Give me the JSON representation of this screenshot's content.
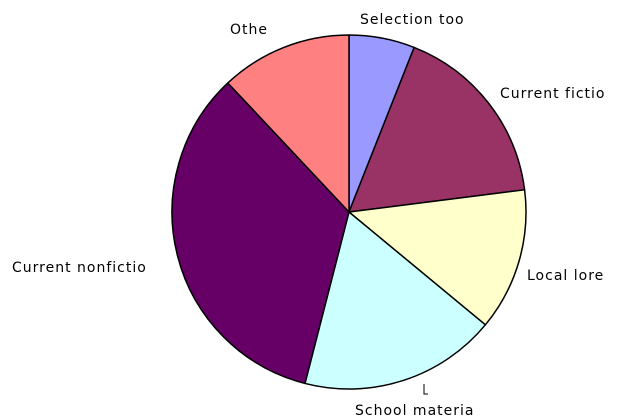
{
  "chart_data": {
    "type": "pie",
    "categories": [
      "Selection too",
      "Current fictio",
      "Local lore",
      "School materia",
      "Current nonfictio",
      "Othe"
    ],
    "values": [
      6,
      17,
      13,
      18,
      34,
      12
    ],
    "colors": [
      "#9999ff",
      "#993366",
      "#ffffcc",
      "#ccffff",
      "#660066",
      "#ff8080"
    ]
  }
}
